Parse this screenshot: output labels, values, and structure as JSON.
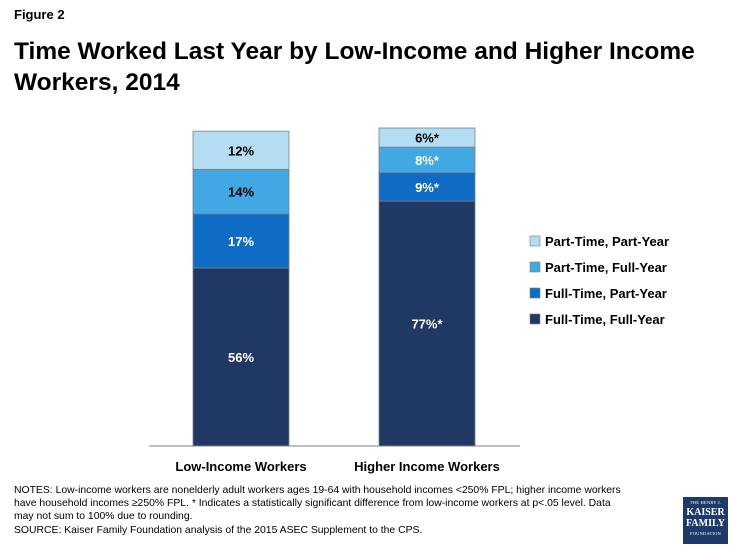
{
  "figure_label": "Figure 2",
  "chart_data": {
    "type": "bar",
    "stacked": true,
    "orientation": "vertical",
    "title": "Time Worked Last Year by Low-Income and Higher Income Workers, 2014",
    "categories": [
      "Low-Income Workers",
      "Higher Income Workers"
    ],
    "series": [
      {
        "name": "Full-Time, Full-Year",
        "color": "#1f3864",
        "values": [
          56,
          77
        ],
        "labels": [
          "56%",
          "77%*"
        ]
      },
      {
        "name": "Full-Time, Part-Year",
        "color": "#0e6cc4",
        "values": [
          17,
          9
        ],
        "labels": [
          "17%",
          "9%*"
        ]
      },
      {
        "name": "Part-Time, Full-Year",
        "color": "#41a8e3",
        "values": [
          14,
          8
        ],
        "labels": [
          "14%",
          "8%*"
        ]
      },
      {
        "name": "Part-Time, Part-Year",
        "color": "#b3ddf2",
        "values": [
          12,
          6
        ],
        "labels": [
          "12%",
          "6%*"
        ]
      }
    ],
    "legend_order": [
      "Part-Time, Part-Year",
      "Part-Time, Full-Year",
      "Full-Time, Part-Year",
      "Full-Time, Full-Year"
    ],
    "legend_position": "right",
    "grid": false,
    "ylim": [
      0,
      100
    ]
  },
  "notes": {
    "line1": "NOTES: Low-income workers are nonelderly adult workers ages 19-64 with household incomes <250% FPL; higher income workers",
    "line2": "have household incomes ≥250% FPL. * Indicates a statistically significant difference from low-income workers at p<.05 level. Data",
    "line3": "may not sum to 100% due to rounding.",
    "source": "SOURCE: Kaiser Family Foundation analysis of the 2015 ASEC Supplement to the CPS."
  },
  "logo": {
    "top": "THE HENRY J.",
    "name1": "KAISER",
    "name2": "FAMILY",
    "bottom": "FOUNDATION"
  }
}
